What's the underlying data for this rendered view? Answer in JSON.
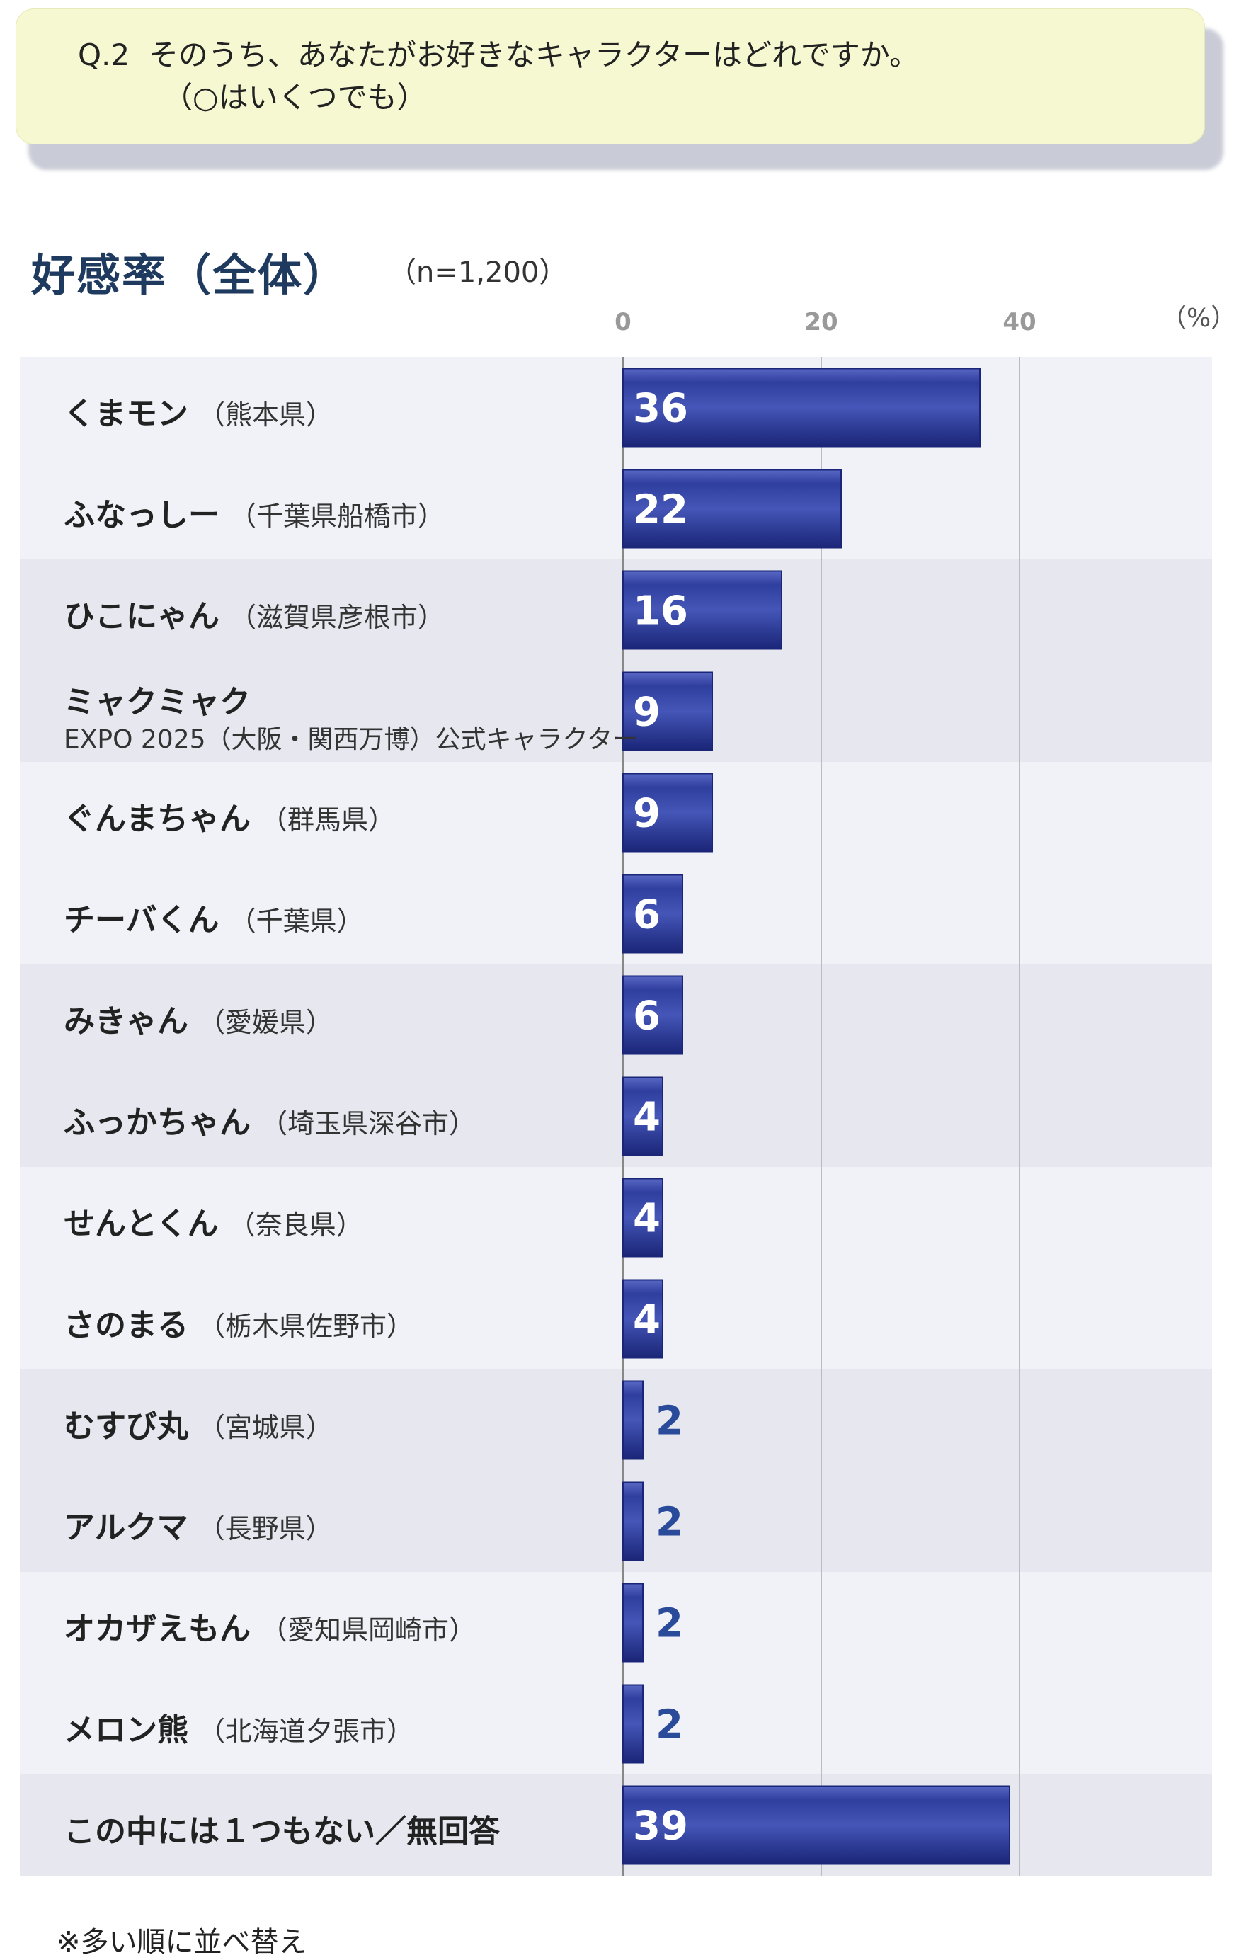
{
  "question": {
    "number": "Q.2",
    "line1": "そのうち、あなたがお好きなキャラクターはどれですか。",
    "line2": "（○はいくつでも）"
  },
  "heading": {
    "title": "好感率（全体）",
    "n": "（n=1,200）",
    "unit": "（%）"
  },
  "footnote": "※多い順に並べ替え",
  "chart_data": {
    "type": "bar",
    "orientation": "horizontal",
    "xlim": [
      0,
      59
    ],
    "xticks": [
      0,
      20,
      40
    ],
    "grid": true,
    "colors": {
      "bar": "#2f3f9e",
      "bar_dark": "#1b2678",
      "bar_light": "#6a7ad0",
      "value_outside": "#2a4a9a"
    },
    "categories": [
      {
        "name": "くまモン",
        "pref": "（熊本県）",
        "value": 36
      },
      {
        "name": "ふなっしー",
        "pref": "（千葉県船橋市）",
        "value": 22
      },
      {
        "name": "ひこにゃん",
        "pref": "（滋賀県彦根市）",
        "value": 16
      },
      {
        "name": "ミャクミャク",
        "sub": "EXPO 2025（大阪・関西万博）公式キャラクター",
        "value": 9
      },
      {
        "name": "ぐんまちゃん",
        "pref": "（群馬県）",
        "value": 9
      },
      {
        "name": "チーバくん",
        "pref": "（千葉県）",
        "value": 6
      },
      {
        "name": "みきゃん",
        "pref": "（愛媛県）",
        "value": 6
      },
      {
        "name": "ふっかちゃん",
        "pref": "（埼玉県深谷市）",
        "value": 4
      },
      {
        "name": "せんとくん",
        "pref": "（奈良県）",
        "value": 4
      },
      {
        "name": "さのまる",
        "pref": "（栃木県佐野市）",
        "value": 4
      },
      {
        "name": "むすび丸",
        "pref": "（宮城県）",
        "value": 2
      },
      {
        "name": "アルクマ",
        "pref": "（長野県）",
        "value": 2
      },
      {
        "name": "オカザえもん",
        "pref": "（愛知県岡崎市）",
        "value": 2
      },
      {
        "name": "メロン熊",
        "pref": "（北海道夕張市）",
        "value": 2
      },
      {
        "name": "この中には１つもない／無回答",
        "value": 39
      }
    ]
  }
}
